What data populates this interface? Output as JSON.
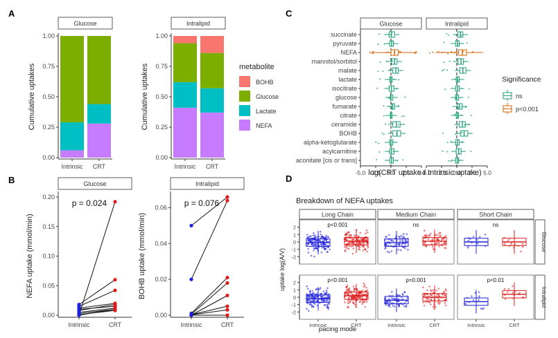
{
  "panels": {
    "A": {
      "label": "A",
      "ylabel": "Cumulative uptakes",
      "legend_title": "metabolite",
      "legend": [
        {
          "name": "BOHB",
          "color": "#f8766d"
        },
        {
          "name": "Glucose",
          "color": "#7cae00"
        },
        {
          "name": "Lactate",
          "color": "#00bfc4"
        },
        {
          "name": "NEFA",
          "color": "#c77cff"
        }
      ]
    },
    "B": {
      "label": "B"
    },
    "C": {
      "label": "C",
      "xlabel": "log(CRT uptake / Intrinsic uptake)",
      "legend_title": "Significance",
      "legend": [
        {
          "name": "ns",
          "color": "#1b9e77"
        },
        {
          "name": "p<0.001",
          "color": "#d95f02"
        }
      ]
    },
    "D": {
      "label": "D",
      "title": "Breakdown of NEFA uptakes",
      "ylabel": "uptake log(A/V)",
      "xlabel": "pacing mode"
    }
  },
  "chart_data": [
    {
      "type": "bar",
      "panel": "A",
      "facet": "Glucose",
      "stacked": true,
      "categories": [
        "Intrinsic",
        "CRT"
      ],
      "series": [
        {
          "name": "NEFA",
          "values": [
            0.06,
            0.28
          ]
        },
        {
          "name": "Lactate",
          "values": [
            0.23,
            0.16
          ]
        },
        {
          "name": "Glucose",
          "values": [
            0.71,
            0.56
          ]
        },
        {
          "name": "BOHB",
          "values": [
            0.0,
            0.0
          ]
        }
      ],
      "ylabel": "Cumulative uptakes",
      "ylim": [
        0,
        1
      ],
      "yticks": [
        "0.00",
        "0.25",
        "0.50",
        "0.75",
        "1.00"
      ]
    },
    {
      "type": "bar",
      "panel": "A",
      "facet": "Intralipid",
      "stacked": true,
      "categories": [
        "Intrinsic",
        "CRT"
      ],
      "series": [
        {
          "name": "NEFA",
          "values": [
            0.41,
            0.37
          ]
        },
        {
          "name": "Lactate",
          "values": [
            0.21,
            0.2
          ]
        },
        {
          "name": "Glucose",
          "values": [
            0.32,
            0.29
          ]
        },
        {
          "name": "BOHB",
          "values": [
            0.06,
            0.14
          ]
        }
      ],
      "ylabel": "Cumulative uptakes",
      "ylim": [
        0,
        1
      ],
      "yticks": [
        "0.00",
        "0.25",
        "0.50",
        "0.75",
        "1.00"
      ]
    },
    {
      "type": "line",
      "panel": "B",
      "facet": "Glucose",
      "categories": [
        "Intrinsic",
        "CRT"
      ],
      "pairs": [
        [
          0.0,
          0.192
        ],
        [
          0.018,
          0.06
        ],
        [
          0.015,
          0.042
        ],
        [
          0.012,
          0.02
        ],
        [
          0.01,
          0.015
        ],
        [
          0.008,
          0.018
        ],
        [
          0.005,
          0.012
        ],
        [
          0.003,
          0.01
        ],
        [
          0.001,
          0.008
        ],
        [
          0.0,
          0.01
        ]
      ],
      "annotation": "p = 0.024",
      "ylabel": "NEFA uptake (mmol/min)",
      "ylim": [
        0,
        0.2
      ],
      "yticks": [
        "0.00",
        "0.05",
        "0.10",
        "0.15",
        "0.20"
      ]
    },
    {
      "type": "line",
      "panel": "B",
      "facet": "Intralipid",
      "categories": [
        "Intrinsic",
        "CRT"
      ],
      "pairs": [
        [
          0.05,
          0.066
        ],
        [
          0.02,
          0.064
        ],
        [
          0.001,
          0.021
        ],
        [
          0.0005,
          0.018
        ],
        [
          0.0,
          0.011
        ],
        [
          0.0003,
          0.005
        ],
        [
          0.0002,
          0.003
        ],
        [
          0.0,
          0.0
        ]
      ],
      "annotation": "p = 0.076",
      "ylabel": "BOHB uptake (mmol/min)",
      "ylim": [
        0,
        0.066
      ],
      "yticks": [
        "0.00",
        "0.02",
        "0.04",
        "0.06"
      ]
    },
    {
      "type": "box",
      "panel": "C",
      "facets": [
        "Glucose",
        "Intralipid"
      ],
      "categories": [
        "succinate",
        "pyruvate",
        "NEFA",
        "mannitol/sorbitol",
        "malate",
        "lactate",
        "isocitrate",
        "glucose",
        "fumarate",
        "citrate",
        "ceramide",
        "BOHB",
        "alpha-ketoglutarate",
        "acylcarnitine",
        "aconitate [cis or trans]"
      ],
      "significance": [
        "ns",
        "ns",
        "p<0.001",
        "ns",
        "ns",
        "ns",
        "ns",
        "ns",
        "ns",
        "ns",
        "ns",
        "ns",
        "ns",
        "ns",
        "ns"
      ],
      "boxes": {
        "Glucose": [
          [
            -0.3,
            0.1,
            0.6
          ],
          [
            -0.2,
            0.1,
            0.4
          ],
          [
            0.0,
            0.6,
            1.2
          ],
          [
            0.1,
            0.6,
            1.0
          ],
          [
            0.3,
            0.8,
            1.2
          ],
          [
            -0.2,
            0.0,
            0.2
          ],
          [
            -0.3,
            0.1,
            0.5
          ],
          [
            -0.1,
            0.0,
            0.3
          ],
          [
            0.1,
            0.3,
            0.6
          ],
          [
            -0.1,
            0.0,
            0.2
          ],
          [
            0.3,
            0.9,
            1.5
          ],
          [
            0.3,
            1.0,
            1.6
          ],
          [
            -0.2,
            0.0,
            0.3
          ],
          [
            -0.2,
            0.1,
            0.5
          ],
          [
            -0.2,
            0.1,
            0.4
          ]
        ],
        "Intralipid": [
          [
            0.2,
            0.6,
            1.0
          ],
          [
            -0.2,
            0.1,
            0.4
          ],
          [
            0.3,
            0.9,
            1.6
          ],
          [
            0.2,
            0.7,
            1.1
          ],
          [
            0.5,
            1.0,
            1.5
          ],
          [
            -0.1,
            0.1,
            0.4
          ],
          [
            -0.2,
            0.1,
            0.4
          ],
          [
            -0.2,
            0.0,
            0.3
          ],
          [
            0.1,
            0.4,
            0.9
          ],
          [
            -0.1,
            0.1,
            0.3
          ],
          [
            0.4,
            0.9,
            1.4
          ],
          [
            0.6,
            1.2,
            1.8
          ],
          [
            -0.2,
            0.1,
            0.4
          ],
          [
            -0.1,
            0.3,
            0.7
          ],
          [
            -0.2,
            0.1,
            0.3
          ]
        ]
      },
      "xlabel": "log(CRT uptake / Intrinsic uptake)",
      "xlim": [
        -5,
        5
      ],
      "xticks": [
        "-5.0",
        "-2.5",
        "0.0",
        "2.5",
        "5.0"
      ]
    },
    {
      "type": "box",
      "panel": "D",
      "title": "Breakdown of NEFA uptakes",
      "col_facets": [
        "Long Chain",
        "Medium Chain",
        "Short Chain"
      ],
      "row_facets": [
        "Glucose",
        "Intralipid"
      ],
      "categories": [
        "Intrinsic",
        "CRT"
      ],
      "annotations": [
        [
          "p<0.001",
          "ns",
          "ns"
        ],
        [
          "p<0.001",
          "p=0.001",
          "p<0.01"
        ]
      ],
      "medians": [
        [
          [
            -0.1,
            0.1
          ],
          [
            -0.1,
            0.1
          ],
          [
            0.0,
            0.0
          ]
        ],
        [
          [
            -0.2,
            0.2
          ],
          [
            -0.4,
            0.0
          ],
          [
            -0.6,
            0.4
          ]
        ]
      ],
      "ylabel": "uptake log(A/V)",
      "xlabel": "pacing mode",
      "ylim": [
        -3,
        3
      ],
      "yticks": [
        "-2",
        "-1",
        "0",
        "1",
        "2"
      ]
    }
  ]
}
